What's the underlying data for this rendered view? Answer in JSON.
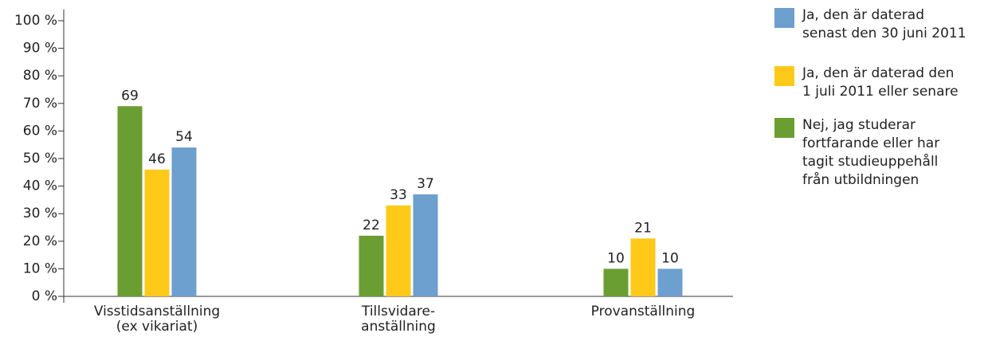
{
  "chart_data": {
    "type": "bar",
    "categories": [
      "Visstidsanställning\n(ex vikariat)",
      "Tillsvidare-\nanställning",
      "Provanställning"
    ],
    "series": [
      {
        "name": "Nej, jag studerar\nfortfarande eller har\ntagit studieuppehåll\nfrån utbildningen",
        "color": "#6a9e32",
        "values": [
          69,
          22,
          10
        ]
      },
      {
        "name": "Ja, den är daterad den\n1 juli 2011 eller senare",
        "color": "#ffc91a",
        "values": [
          46,
          33,
          21
        ]
      },
      {
        "name": "Ja, den är daterad\nsenast den 30 juni 2011",
        "color": "#6d9fcf",
        "values": [
          54,
          37,
          10
        ]
      }
    ],
    "ylim": [
      0,
      100
    ],
    "yticks": [
      {
        "value": 0,
        "label": "0 %"
      },
      {
        "value": 10,
        "label": "10 %"
      },
      {
        "value": 20,
        "label": "20 %"
      },
      {
        "value": 30,
        "label": "30 %"
      },
      {
        "value": 40,
        "label": "40 %"
      },
      {
        "value": 50,
        "label": "50 %"
      },
      {
        "value": 60,
        "label": "60 %"
      },
      {
        "value": 70,
        "label": "70 %"
      },
      {
        "value": 80,
        "label": "80 %"
      },
      {
        "value": 90,
        "label": "90 %"
      },
      {
        "value": 100,
        "label": "100 %"
      }
    ],
    "legend": "right"
  }
}
